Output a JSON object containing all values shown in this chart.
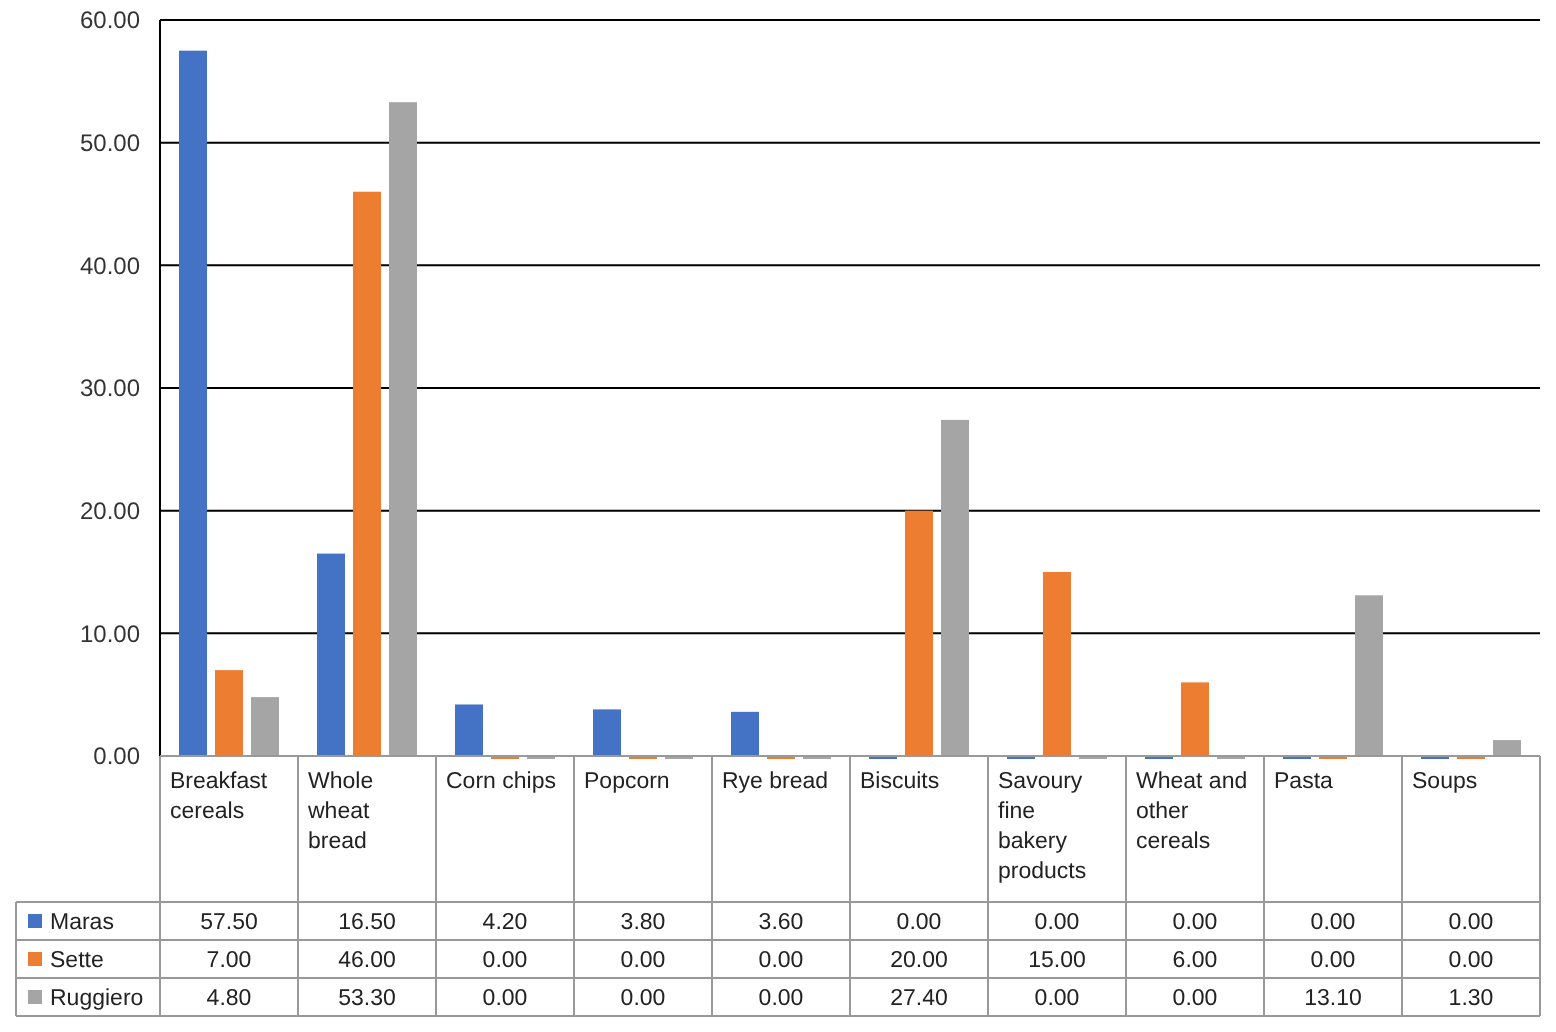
{
  "chart_data": {
    "type": "bar",
    "categories": [
      "Breakfast cereals",
      "Whole wheat bread",
      "Corn chips",
      "Popcorn",
      "Rye bread",
      "Biscuits",
      "Savoury fine bakery products",
      "Wheat and other cereals",
      "Pasta",
      "Soups"
    ],
    "series": [
      {
        "name": "Maras",
        "color": "#4472c4",
        "values": [
          57.5,
          16.5,
          4.2,
          3.8,
          3.6,
          0,
          0,
          0,
          0,
          0
        ],
        "value_labels": [
          "57.50",
          "16.50",
          "4.20",
          "3.80",
          "3.60",
          "0.00",
          "0.00",
          "0.00",
          "0.00",
          "0.00"
        ]
      },
      {
        "name": "Sette",
        "color": "#ed7d31",
        "values": [
          7,
          46,
          0,
          0,
          0,
          20,
          15,
          6,
          0,
          0
        ],
        "value_labels": [
          "7.00",
          "46.00",
          "0.00",
          "0.00",
          "0.00",
          "20.00",
          "15.00",
          "6.00",
          "0.00",
          "0.00"
        ]
      },
      {
        "name": "Ruggiero",
        "color": "#a5a5a5",
        "values": [
          4.8,
          53.3,
          0,
          0,
          0,
          27.4,
          0,
          0,
          13.1,
          1.3
        ],
        "value_labels": [
          "4.80",
          "53.30",
          "0.00",
          "0.00",
          "0.00",
          "27.40",
          "0.00",
          "0.00",
          "13.10",
          "1.30"
        ]
      }
    ],
    "ylim": [
      0,
      60
    ],
    "yticks": [
      {
        "value": 0,
        "label": "0.00"
      },
      {
        "value": 10,
        "label": "10.00"
      },
      {
        "value": 20,
        "label": "20.00"
      },
      {
        "value": 30,
        "label": "30.00"
      },
      {
        "value": 40,
        "label": "40.00"
      },
      {
        "value": 50,
        "label": "50.00"
      },
      {
        "value": 60,
        "label": "60.00"
      }
    ],
    "grid": "y",
    "legend": "bottom"
  }
}
